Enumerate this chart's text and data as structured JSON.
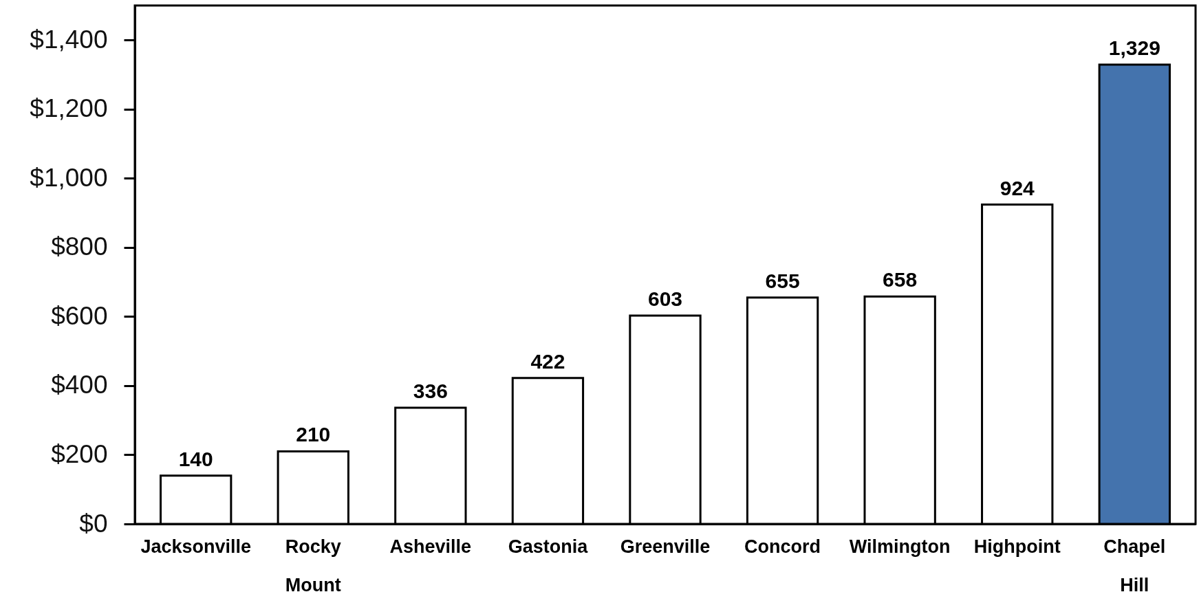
{
  "chart_data": {
    "type": "bar",
    "categories": [
      "Jacksonville",
      "Rocky Mount",
      "Asheville",
      "Gastonia",
      "Greenville",
      "Concord",
      "Wilmington",
      "Highpoint",
      "Chapel Hill"
    ],
    "values": [
      140,
      210,
      336,
      422,
      603,
      655,
      658,
      924,
      1329
    ],
    "colors": [
      "#ffffff",
      "#ffffff",
      "#ffffff",
      "#ffffff",
      "#ffffff",
      "#ffffff",
      "#ffffff",
      "#ffffff",
      "#4473ad"
    ],
    "value_labels": [
      "140",
      "210",
      "336",
      "422",
      "603",
      "655",
      "658",
      "924",
      "1,329"
    ],
    "ylim": [
      0,
      1500
    ],
    "yticks": [
      {
        "value": 0,
        "label": "$0"
      },
      {
        "value": 200,
        "label": "$200"
      },
      {
        "value": 400,
        "label": "$400"
      },
      {
        "value": 600,
        "label": "$600"
      },
      {
        "value": 800,
        "label": "$800"
      },
      {
        "value": 1000,
        "label": "$1,000"
      },
      {
        "value": 1200,
        "label": "$1,200"
      },
      {
        "value": 1400,
        "label": "$1,400"
      }
    ]
  }
}
